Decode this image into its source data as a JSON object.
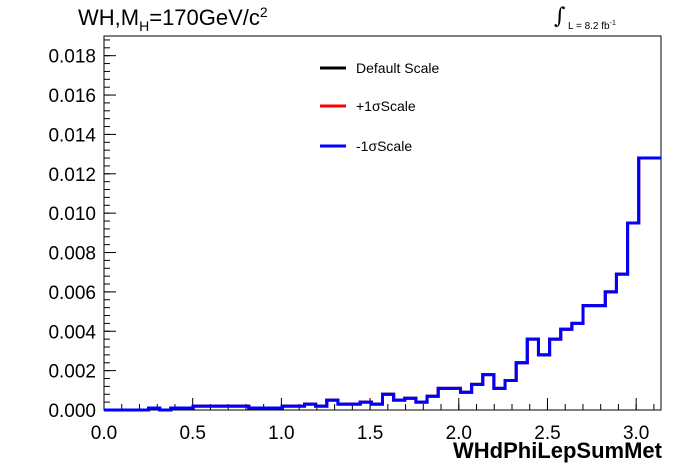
{
  "title": {
    "prefix": "WH,M",
    "sub": "H",
    "mid": "=170GeV/c",
    "sup": "2"
  },
  "lumi": {
    "text": "L = 8.2 fb",
    "sup": "-1"
  },
  "chart_data": {
    "type": "line",
    "xlabel": "WHdPhiLepSumMet",
    "ylabel": "",
    "xlim": [
      0.0,
      3.14
    ],
    "ylim": [
      0.0,
      0.019
    ],
    "x_ticks": [
      "0.0",
      "0.5",
      "1.0",
      "1.5",
      "2.0",
      "2.5",
      "3.0"
    ],
    "y_ticks": [
      "0.000",
      "0.002",
      "0.004",
      "0.006",
      "0.008",
      "0.010",
      "0.012",
      "0.014",
      "0.016",
      "0.018"
    ],
    "grid": false,
    "legend_position": "top-center",
    "legend": [
      {
        "label": "Default Scale",
        "color": "#000000"
      },
      {
        "label": "+1σScale",
        "color": "#ff0000"
      },
      {
        "label": "-1σScale",
        "color": "#0000ff"
      }
    ],
    "bin_width": 0.0628,
    "series": [
      {
        "name": "Default Scale",
        "color": "#000000",
        "values": [
          0.0,
          0.0,
          0.0,
          0.0,
          0.0001,
          0.0,
          0.0001,
          0.0001,
          0.0002,
          0.0002,
          0.0002,
          0.0002,
          0.0002,
          0.0001,
          0.0001,
          0.0001,
          0.0002,
          0.0002,
          0.0003,
          0.0002,
          0.0005,
          0.0003,
          0.0003,
          0.0004,
          0.0003,
          0.0008,
          0.0005,
          0.0006,
          0.0004,
          0.0007,
          0.0011,
          0.0011,
          0.0009,
          0.0013,
          0.0018,
          0.0011,
          0.0015,
          0.0024,
          0.0036,
          0.0028,
          0.0036,
          0.0041,
          0.0044,
          0.0053,
          0.0053,
          0.006,
          0.0069,
          0.0095,
          0.0128,
          0.0128
        ]
      },
      {
        "name": "+1σScale",
        "color": "#ff0000",
        "values": [
          0.0,
          0.0,
          0.0,
          0.0,
          0.0001,
          0.0,
          0.0001,
          0.0001,
          0.0002,
          0.0002,
          0.0002,
          0.0002,
          0.0002,
          0.0001,
          0.0001,
          0.0001,
          0.0002,
          0.0002,
          0.0003,
          0.0002,
          0.0005,
          0.0003,
          0.0003,
          0.0004,
          0.0003,
          0.0008,
          0.0005,
          0.0006,
          0.0004,
          0.0007,
          0.0011,
          0.0011,
          0.0009,
          0.0013,
          0.0018,
          0.0011,
          0.0015,
          0.0024,
          0.0036,
          0.0028,
          0.0036,
          0.0041,
          0.0044,
          0.0053,
          0.0053,
          0.006,
          0.0069,
          0.0095,
          0.0128,
          0.0128
        ]
      },
      {
        "name": "-1σScale",
        "color": "#0000ff",
        "values": [
          0.0,
          0.0,
          0.0,
          0.0,
          0.0001,
          0.0,
          0.0001,
          0.0001,
          0.0002,
          0.0002,
          0.0002,
          0.0002,
          0.0002,
          0.0001,
          0.0001,
          0.0001,
          0.0002,
          0.0002,
          0.0003,
          0.0002,
          0.0005,
          0.0003,
          0.0003,
          0.0004,
          0.0003,
          0.0008,
          0.0005,
          0.0006,
          0.0004,
          0.0007,
          0.0011,
          0.0011,
          0.0009,
          0.0013,
          0.0018,
          0.0011,
          0.0015,
          0.0024,
          0.0036,
          0.0028,
          0.0036,
          0.0041,
          0.0044,
          0.0053,
          0.0053,
          0.006,
          0.0069,
          0.0095,
          0.0128,
          0.0128
        ]
      }
    ]
  }
}
